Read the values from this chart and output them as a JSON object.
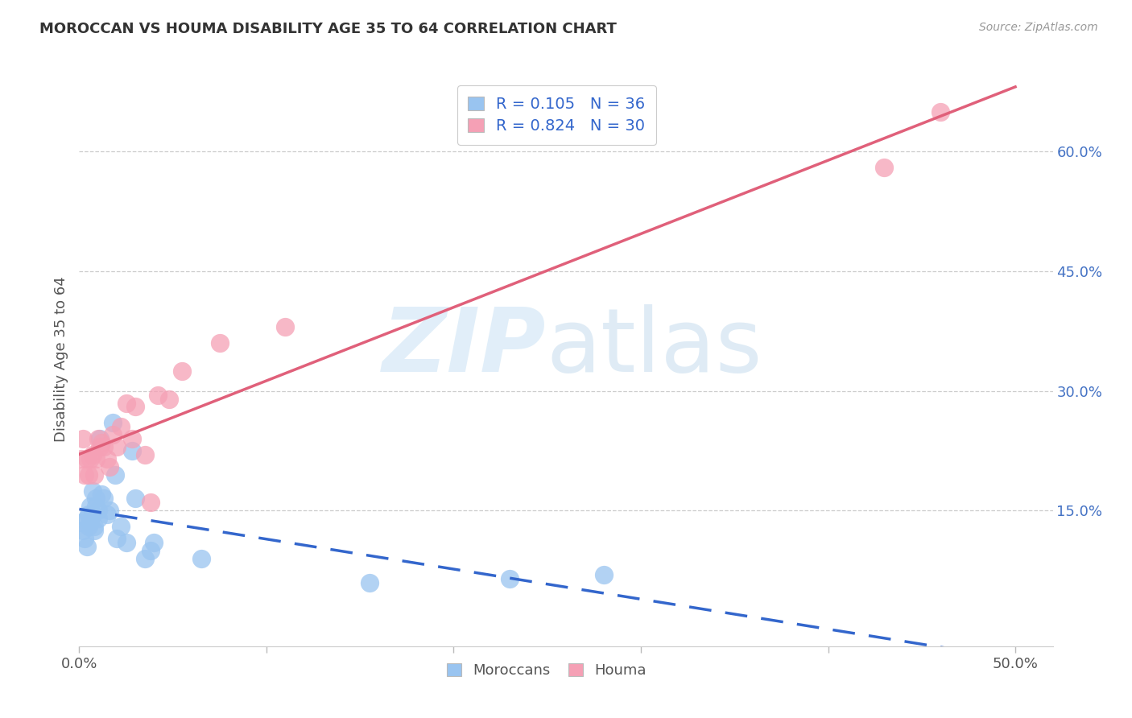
{
  "title": "MOROCCAN VS HOUMA DISABILITY AGE 35 TO 64 CORRELATION CHART",
  "source": "Source: ZipAtlas.com",
  "ylabel": "Disability Age 35 to 64",
  "xlim": [
    0.0,
    0.52
  ],
  "ylim": [
    -0.02,
    0.7
  ],
  "yticks_right": [
    0.15,
    0.3,
    0.45,
    0.6
  ],
  "ytick_labels_right": [
    "15.0%",
    "30.0%",
    "45.0%",
    "60.0%"
  ],
  "moroccan_color": "#99c4f0",
  "houma_color": "#f5a0b5",
  "moroccan_line_color": "#3366cc",
  "houma_line_color": "#e0607a",
  "legend_label_blue": "R = 0.105   N = 36",
  "legend_label_pink": "R = 0.824   N = 30",
  "legend_label_moroccans": "Moroccans",
  "legend_label_houma": "Houma",
  "background_color": "#ffffff",
  "moroccan_x": [
    0.001,
    0.002,
    0.003,
    0.004,
    0.004,
    0.005,
    0.005,
    0.006,
    0.006,
    0.007,
    0.007,
    0.008,
    0.008,
    0.009,
    0.009,
    0.01,
    0.01,
    0.011,
    0.012,
    0.013,
    0.015,
    0.016,
    0.018,
    0.019,
    0.02,
    0.022,
    0.025,
    0.028,
    0.03,
    0.035,
    0.038,
    0.04,
    0.065,
    0.155,
    0.23,
    0.28
  ],
  "moroccan_y": [
    0.135,
    0.125,
    0.115,
    0.105,
    0.14,
    0.13,
    0.145,
    0.135,
    0.155,
    0.175,
    0.145,
    0.13,
    0.125,
    0.165,
    0.155,
    0.15,
    0.14,
    0.24,
    0.17,
    0.165,
    0.145,
    0.15,
    0.26,
    0.195,
    0.115,
    0.13,
    0.11,
    0.225,
    0.165,
    0.09,
    0.1,
    0.11,
    0.09,
    0.06,
    0.065,
    0.07
  ],
  "houma_x": [
    0.001,
    0.002,
    0.003,
    0.004,
    0.005,
    0.006,
    0.007,
    0.008,
    0.009,
    0.01,
    0.011,
    0.012,
    0.013,
    0.015,
    0.016,
    0.018,
    0.02,
    0.022,
    0.025,
    0.028,
    0.03,
    0.035,
    0.038,
    0.042,
    0.048,
    0.055,
    0.075,
    0.11,
    0.43,
    0.46
  ],
  "houma_y": [
    0.215,
    0.24,
    0.195,
    0.215,
    0.195,
    0.215,
    0.22,
    0.195,
    0.215,
    0.24,
    0.23,
    0.235,
    0.23,
    0.215,
    0.205,
    0.245,
    0.23,
    0.255,
    0.285,
    0.24,
    0.28,
    0.22,
    0.16,
    0.295,
    0.29,
    0.325,
    0.36,
    0.38,
    0.58,
    0.65
  ]
}
